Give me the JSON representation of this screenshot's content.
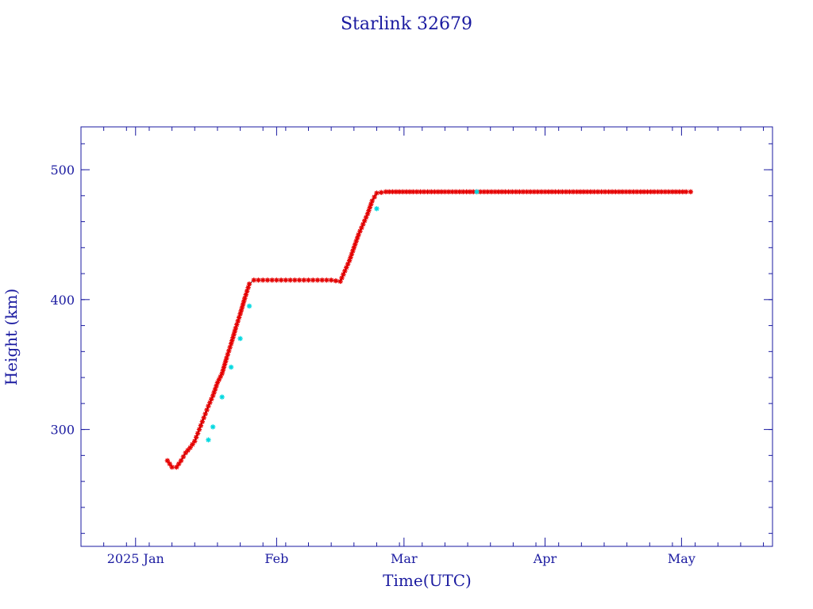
{
  "chart_data": {
    "type": "scatter",
    "title": "Starlink 32679",
    "xlabel": "Time(UTC)",
    "ylabel": "Height (km)",
    "x_type": "date",
    "xlim": [
      "2024-12-20",
      "2025-05-21"
    ],
    "ylim": [
      210,
      533
    ],
    "x_ticks": [
      {
        "date": "2025-01-01",
        "label": "2025 Jan"
      },
      {
        "date": "2025-02-01",
        "label": "Feb"
      },
      {
        "date": "2025-03-01",
        "label": "Mar"
      },
      {
        "date": "2025-04-01",
        "label": "Apr"
      },
      {
        "date": "2025-05-01",
        "label": "May"
      }
    ],
    "y_ticks": [
      300,
      400,
      500
    ],
    "grid": false,
    "colors": {
      "axis": "#1a1aa0",
      "primary_markers": "#e60000",
      "secondary_markers": "#00d8e0",
      "line": "#000000"
    },
    "series": [
      {
        "marker": "red-star",
        "x": [
          "2025-01-08",
          "2025-01-09",
          "2025-01-10",
          "2025-01-11",
          "2025-01-12",
          "2025-01-13",
          "2025-01-14",
          "2025-01-15",
          "2025-01-16",
          "2025-01-17",
          "2025-01-18",
          "2025-01-19",
          "2025-01-20",
          "2025-01-21",
          "2025-01-22",
          "2025-01-23",
          "2025-01-24",
          "2025-01-25",
          "2025-01-26",
          "2025-01-27",
          "2025-01-28",
          "2025-01-29",
          "2025-01-30",
          "2025-01-31",
          "2025-02-01",
          "2025-02-03",
          "2025-02-05",
          "2025-02-07",
          "2025-02-09",
          "2025-02-11",
          "2025-02-13",
          "2025-02-15",
          "2025-02-16",
          "2025-02-17",
          "2025-02-18",
          "2025-02-19",
          "2025-02-20",
          "2025-02-21",
          "2025-02-22",
          "2025-02-23",
          "2025-02-25",
          "2025-02-28",
          "2025-03-03",
          "2025-03-07",
          "2025-03-10",
          "2025-03-14",
          "2025-03-17",
          "2025-03-21",
          "2025-03-24",
          "2025-03-28",
          "2025-04-01",
          "2025-04-04",
          "2025-04-08",
          "2025-04-11",
          "2025-04-15",
          "2025-04-18",
          "2025-04-22",
          "2025-04-25",
          "2025-04-29",
          "2025-05-02",
          "2025-05-03"
        ],
        "y": [
          276,
          271,
          271,
          276,
          282,
          286,
          291,
          300,
          309,
          318,
          326,
          336,
          343,
          355,
          366,
          378,
          389,
          401,
          412,
          415,
          415,
          415,
          415,
          415,
          415,
          415,
          415,
          415,
          415,
          415,
          415,
          414,
          422,
          430,
          440,
          450,
          458,
          466,
          476,
          482,
          483,
          483,
          483,
          483,
          483,
          483,
          483,
          483,
          483,
          483,
          483,
          483,
          483,
          483,
          483,
          483,
          483,
          483,
          483,
          483,
          483
        ]
      },
      {
        "marker": "cyan-star",
        "x": [
          "2025-01-17",
          "2025-01-18",
          "2025-01-20",
          "2025-01-22",
          "2025-01-24",
          "2025-01-26",
          "2025-02-23",
          "2025-03-17"
        ],
        "y": [
          292,
          302,
          325,
          348,
          370,
          395,
          470,
          483
        ]
      }
    ]
  }
}
